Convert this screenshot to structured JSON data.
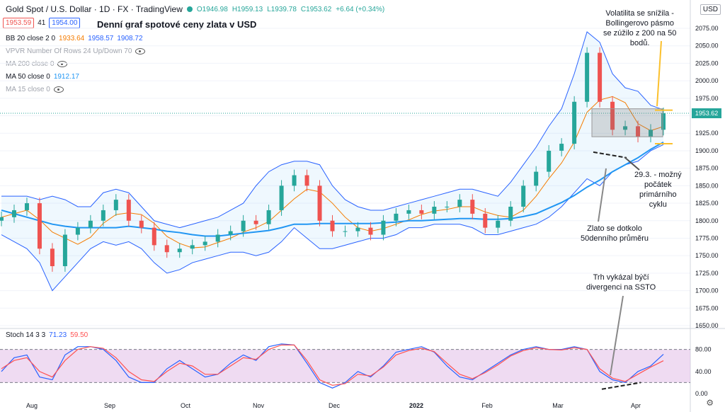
{
  "header": {
    "symbol": "Gold Spot / U.S. Dollar · 1D · FX · TradingView",
    "open": "O1946.98",
    "high": "H1959.13",
    "low": "L1939.78",
    "close": "C1953.62",
    "change": "+6.64 (+0.34%)",
    "sell_price": "1953.59",
    "spread": "41",
    "buy_price": "1954.00",
    "currency": "USD"
  },
  "title": "Denní graf spotové ceny zlata v USD",
  "indicators": {
    "bb": {
      "label": "BB 20 close 2 0",
      "v1": "1933.64",
      "v2": "1958.57",
      "v3": "1908.72"
    },
    "vpvr": "VPVR Number Of Rows 24 Up/Down 70",
    "ma200": "MA 200 close 0",
    "ma50": {
      "label": "MA 50 close 0",
      "value": "1912.17"
    },
    "ma15": "MA 15 close 0"
  },
  "stoch": {
    "label": "Stoch 14 3 3",
    "k": "71.23",
    "d": "59.50"
  },
  "annotations": {
    "volatility": [
      "Volatilita se snížila -",
      "Bollingerovo pásmo",
      "se zúžilo z 200 na 50",
      "bodů."
    ],
    "cycle": [
      "29.3. - možný",
      "počátek",
      "primárního",
      "cyklu"
    ],
    "ma50_touch": [
      "Zlato se dotkolo",
      "50denního průměru"
    ],
    "divergence": [
      "Trh vykázal býčí",
      "divergenci na SSTO"
    ]
  },
  "price_axis": [
    "2075.00",
    "2050.00",
    "2025.00",
    "2000.00",
    "1975.00",
    "1950.00",
    "1925.00",
    "1900.00",
    "1875.00",
    "1850.00",
    "1825.00",
    "1800.00",
    "1775.00",
    "1750.00",
    "1725.00",
    "1700.00",
    "1675.00",
    "1650.00"
  ],
  "last_price": "1953.62",
  "stoch_axis": [
    "80.00",
    "40.00",
    "0.00"
  ],
  "time_axis": [
    "Aug",
    "Sep",
    "Oct",
    "Nov",
    "Dec",
    "2022",
    "Feb",
    "Mar",
    "Apr"
  ],
  "colors": {
    "up": "#26a69a",
    "down": "#ef5350",
    "bb_basis": "#f57c00",
    "band": "#2962ff",
    "ma50": "#2196f3",
    "stoch_k": "#2962ff",
    "stoch_d": "#ff5252",
    "stoch_bg": "#e1bee7",
    "annotation": "#fbc02d"
  },
  "chart_data": {
    "type": "candlestick",
    "title": "Denní graf spotové ceny zlata v USD",
    "ylim": [
      1650,
      2090
    ],
    "x": [
      "Jul-22",
      "Jul-27",
      "Aug-01",
      "Aug-05",
      "Aug-10",
      "Aug-15",
      "Aug-20",
      "Aug-25",
      "Aug-30",
      "Sep-04",
      "Sep-09",
      "Sep-14",
      "Sep-19",
      "Sep-24",
      "Sep-29",
      "Oct-04",
      "Oct-09",
      "Oct-14",
      "Oct-19",
      "Oct-24",
      "Oct-29",
      "Nov-03",
      "Nov-08",
      "Nov-13",
      "Nov-18",
      "Nov-23",
      "Nov-28",
      "Dec-03",
      "Dec-08",
      "Dec-13",
      "Dec-18",
      "Dec-23",
      "Dec-28",
      "Jan-02",
      "Jan-07",
      "Jan-12",
      "Jan-17",
      "Jan-22",
      "Jan-27",
      "Feb-01",
      "Feb-06",
      "Feb-11",
      "Feb-16",
      "Feb-21",
      "Feb-26",
      "Mar-03",
      "Mar-08",
      "Mar-13",
      "Mar-18",
      "Mar-23",
      "Mar-28",
      "Apr-01",
      "Apr-05"
    ],
    "close": [
      1805,
      1815,
      1825,
      1760,
      1735,
      1780,
      1790,
      1800,
      1815,
      1830,
      1800,
      1790,
      1765,
      1755,
      1760,
      1765,
      1770,
      1780,
      1785,
      1800,
      1795,
      1815,
      1850,
      1865,
      1850,
      1800,
      1785,
      1785,
      1790,
      1780,
      1800,
      1810,
      1815,
      1810,
      1820,
      1820,
      1830,
      1810,
      1790,
      1800,
      1820,
      1850,
      1870,
      1900,
      1910,
      1970,
      2040,
      1970,
      1930,
      1935,
      1920,
      1930,
      1953.62
    ],
    "bb_upper": [
      1835,
      1835,
      1835,
      1830,
      1835,
      1830,
      1820,
      1820,
      1840,
      1845,
      1840,
      1820,
      1800,
      1795,
      1790,
      1795,
      1800,
      1805,
      1815,
      1825,
      1850,
      1870,
      1880,
      1885,
      1885,
      1880,
      1850,
      1830,
      1820,
      1815,
      1815,
      1820,
      1825,
      1830,
      1835,
      1840,
      1845,
      1845,
      1840,
      1835,
      1855,
      1880,
      1905,
      1935,
      1960,
      2010,
      2070,
      2055,
      2010,
      1990,
      1985,
      1965,
      1958.57
    ],
    "bb_lower": [
      1780,
      1770,
      1760,
      1740,
      1700,
      1720,
      1740,
      1760,
      1770,
      1765,
      1770,
      1760,
      1740,
      1725,
      1730,
      1740,
      1745,
      1750,
      1755,
      1755,
      1750,
      1755,
      1770,
      1790,
      1775,
      1760,
      1760,
      1765,
      1770,
      1775,
      1775,
      1780,
      1790,
      1790,
      1795,
      1795,
      1795,
      1790,
      1780,
      1780,
      1785,
      1790,
      1795,
      1805,
      1820,
      1840,
      1860,
      1850,
      1870,
      1880,
      1885,
      1900,
      1908.72
    ],
    "ma50": [
      1815,
      1810,
      1805,
      1800,
      1795,
      1792,
      1790,
      1790,
      1790,
      1790,
      1792,
      1790,
      1788,
      1785,
      1783,
      1780,
      1778,
      1778,
      1780,
      1782,
      1784,
      1786,
      1790,
      1795,
      1795,
      1796,
      1796,
      1796,
      1796,
      1796,
      1797,
      1798,
      1800,
      1800,
      1801,
      1802,
      1803,
      1803,
      1802,
      1802,
      1803,
      1806,
      1810,
      1818,
      1826,
      1836,
      1848,
      1858,
      1870,
      1880,
      1890,
      1902,
      1912.17
    ],
    "stoch_k": [
      40,
      65,
      70,
      30,
      25,
      70,
      85,
      85,
      80,
      60,
      30,
      20,
      20,
      45,
      60,
      45,
      30,
      35,
      55,
      70,
      60,
      85,
      90,
      88,
      55,
      20,
      10,
      20,
      40,
      30,
      50,
      75,
      80,
      85,
      75,
      50,
      30,
      25,
      40,
      55,
      70,
      80,
      85,
      80,
      80,
      85,
      80,
      40,
      25,
      20,
      40,
      50,
      71.23
    ],
    "stoch_d": [
      45,
      60,
      65,
      40,
      30,
      60,
      80,
      85,
      82,
      65,
      40,
      25,
      22,
      40,
      55,
      50,
      35,
      35,
      50,
      65,
      62,
      80,
      88,
      88,
      60,
      25,
      15,
      18,
      35,
      32,
      48,
      70,
      78,
      82,
      76,
      55,
      35,
      27,
      38,
      52,
      68,
      78,
      83,
      80,
      79,
      83,
      80,
      45,
      28,
      22,
      35,
      48,
      59.5
    ]
  }
}
